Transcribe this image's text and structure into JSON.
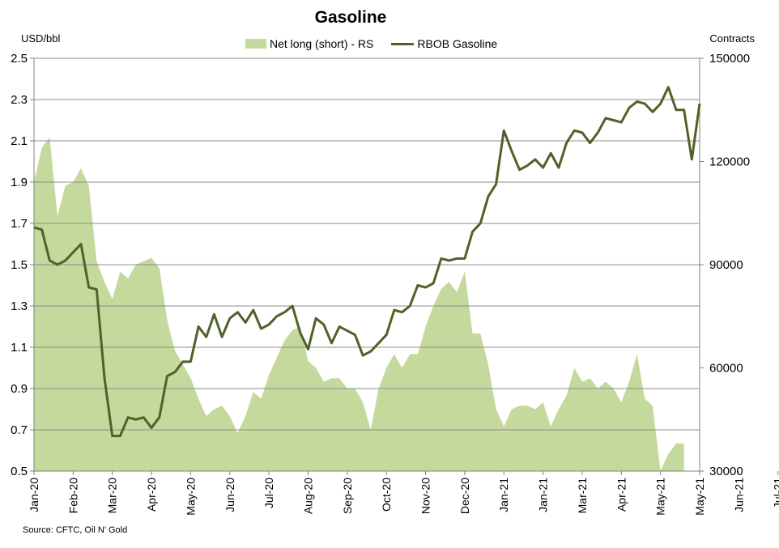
{
  "chart_data": {
    "type": "line",
    "title": "Gasoline",
    "ylabel_left": "USD/bbl",
    "ylabel_right": "Contracts",
    "source": "Source: CFTC, Oil N' Gold",
    "colors": {
      "area": "#c5d99c",
      "line": "#4f6228",
      "grid": "#8c8c8c",
      "axis": "#808080"
    },
    "legend": [
      {
        "name": "Net long (short) - RS",
        "kind": "area"
      },
      {
        "name": "RBOB Gasoline",
        "kind": "line"
      }
    ],
    "legend_position": "top-center",
    "grid": true,
    "ylim_left": [
      0.5,
      2.5
    ],
    "ylim_right": [
      30000,
      150000
    ],
    "y_ticks_left": [
      "0.5",
      "0.7",
      "0.9",
      "1.1",
      "1.3",
      "1.5",
      "1.7",
      "1.9",
      "2.1",
      "2.3",
      "2.5"
    ],
    "y_ticks_right": [
      "30000",
      "60000",
      "90000",
      "120000",
      "150000"
    ],
    "x_tick_labels": [
      "Jan-20",
      "Feb-20",
      "Mar-20",
      "Apr-20",
      "May-20",
      "Jun-20",
      "Jul-20",
      "Aug-20",
      "Sep-20",
      "Oct-20",
      "Nov-20",
      "Dec-20",
      "Jan-21",
      "Jan-21",
      "Mar-21",
      "Apr-21",
      "May-21",
      "May-21",
      "Jun-21",
      "Jul-21"
    ],
    "x_tick_week_index": [
      0,
      5,
      10,
      15,
      20,
      25,
      30,
      35,
      40,
      45,
      50,
      55,
      60,
      65,
      70,
      75,
      80,
      85,
      90,
      95
    ],
    "series": [
      {
        "name": "RBOB Gasoline",
        "axis": "left",
        "values": [
          1.68,
          1.67,
          1.52,
          1.5,
          1.52,
          1.56,
          1.6,
          1.39,
          1.38,
          0.95,
          0.67,
          0.67,
          0.76,
          0.75,
          0.76,
          0.71,
          0.76,
          0.96,
          0.98,
          1.03,
          1.03,
          1.2,
          1.15,
          1.26,
          1.15,
          1.24,
          1.27,
          1.22,
          1.28,
          1.19,
          1.21,
          1.25,
          1.27,
          1.3,
          1.17,
          1.09,
          1.24,
          1.21,
          1.12,
          1.2,
          1.18,
          1.16,
          1.06,
          1.08,
          1.12,
          1.16,
          1.28,
          1.27,
          1.3,
          1.4,
          1.39,
          1.41,
          1.53,
          1.52,
          1.53,
          1.53,
          1.66,
          1.7,
          1.83,
          1.89,
          2.15,
          2.05,
          1.96,
          1.98,
          2.01,
          1.97,
          2.04,
          1.97,
          2.09,
          2.15,
          2.14,
          2.09,
          2.14,
          2.21,
          2.2,
          2.19,
          2.26,
          2.29,
          2.28,
          2.24,
          2.28,
          2.36,
          2.25,
          2.25,
          2.01,
          2.28
        ]
      },
      {
        "name": "Net long (short) - RS",
        "axis": "right",
        "values": [
          114000,
          124000,
          127000,
          104000,
          113000,
          114000,
          118000,
          113000,
          91000,
          85000,
          80000,
          88000,
          86000,
          90000,
          91000,
          92000,
          89000,
          74000,
          65000,
          61000,
          57000,
          51000,
          46000,
          48000,
          49000,
          46000,
          41000,
          46000,
          53000,
          51000,
          58000,
          63000,
          68000,
          71000,
          72000,
          62000,
          60000,
          56000,
          57000,
          57000,
          54000,
          54000,
          50000,
          42000,
          54000,
          60000,
          64000,
          60000,
          64000,
          64000,
          72000,
          78000,
          83000,
          85000,
          82000,
          88000,
          70000,
          70000,
          61000,
          48000,
          43000,
          48000,
          49000,
          49000,
          48000,
          50000,
          43000,
          48000,
          52000,
          60000,
          56000,
          57000,
          54000,
          56000,
          54000,
          50000,
          56000,
          64000,
          51000,
          49000,
          30000,
          35000,
          38000,
          38000
        ]
      }
    ]
  }
}
